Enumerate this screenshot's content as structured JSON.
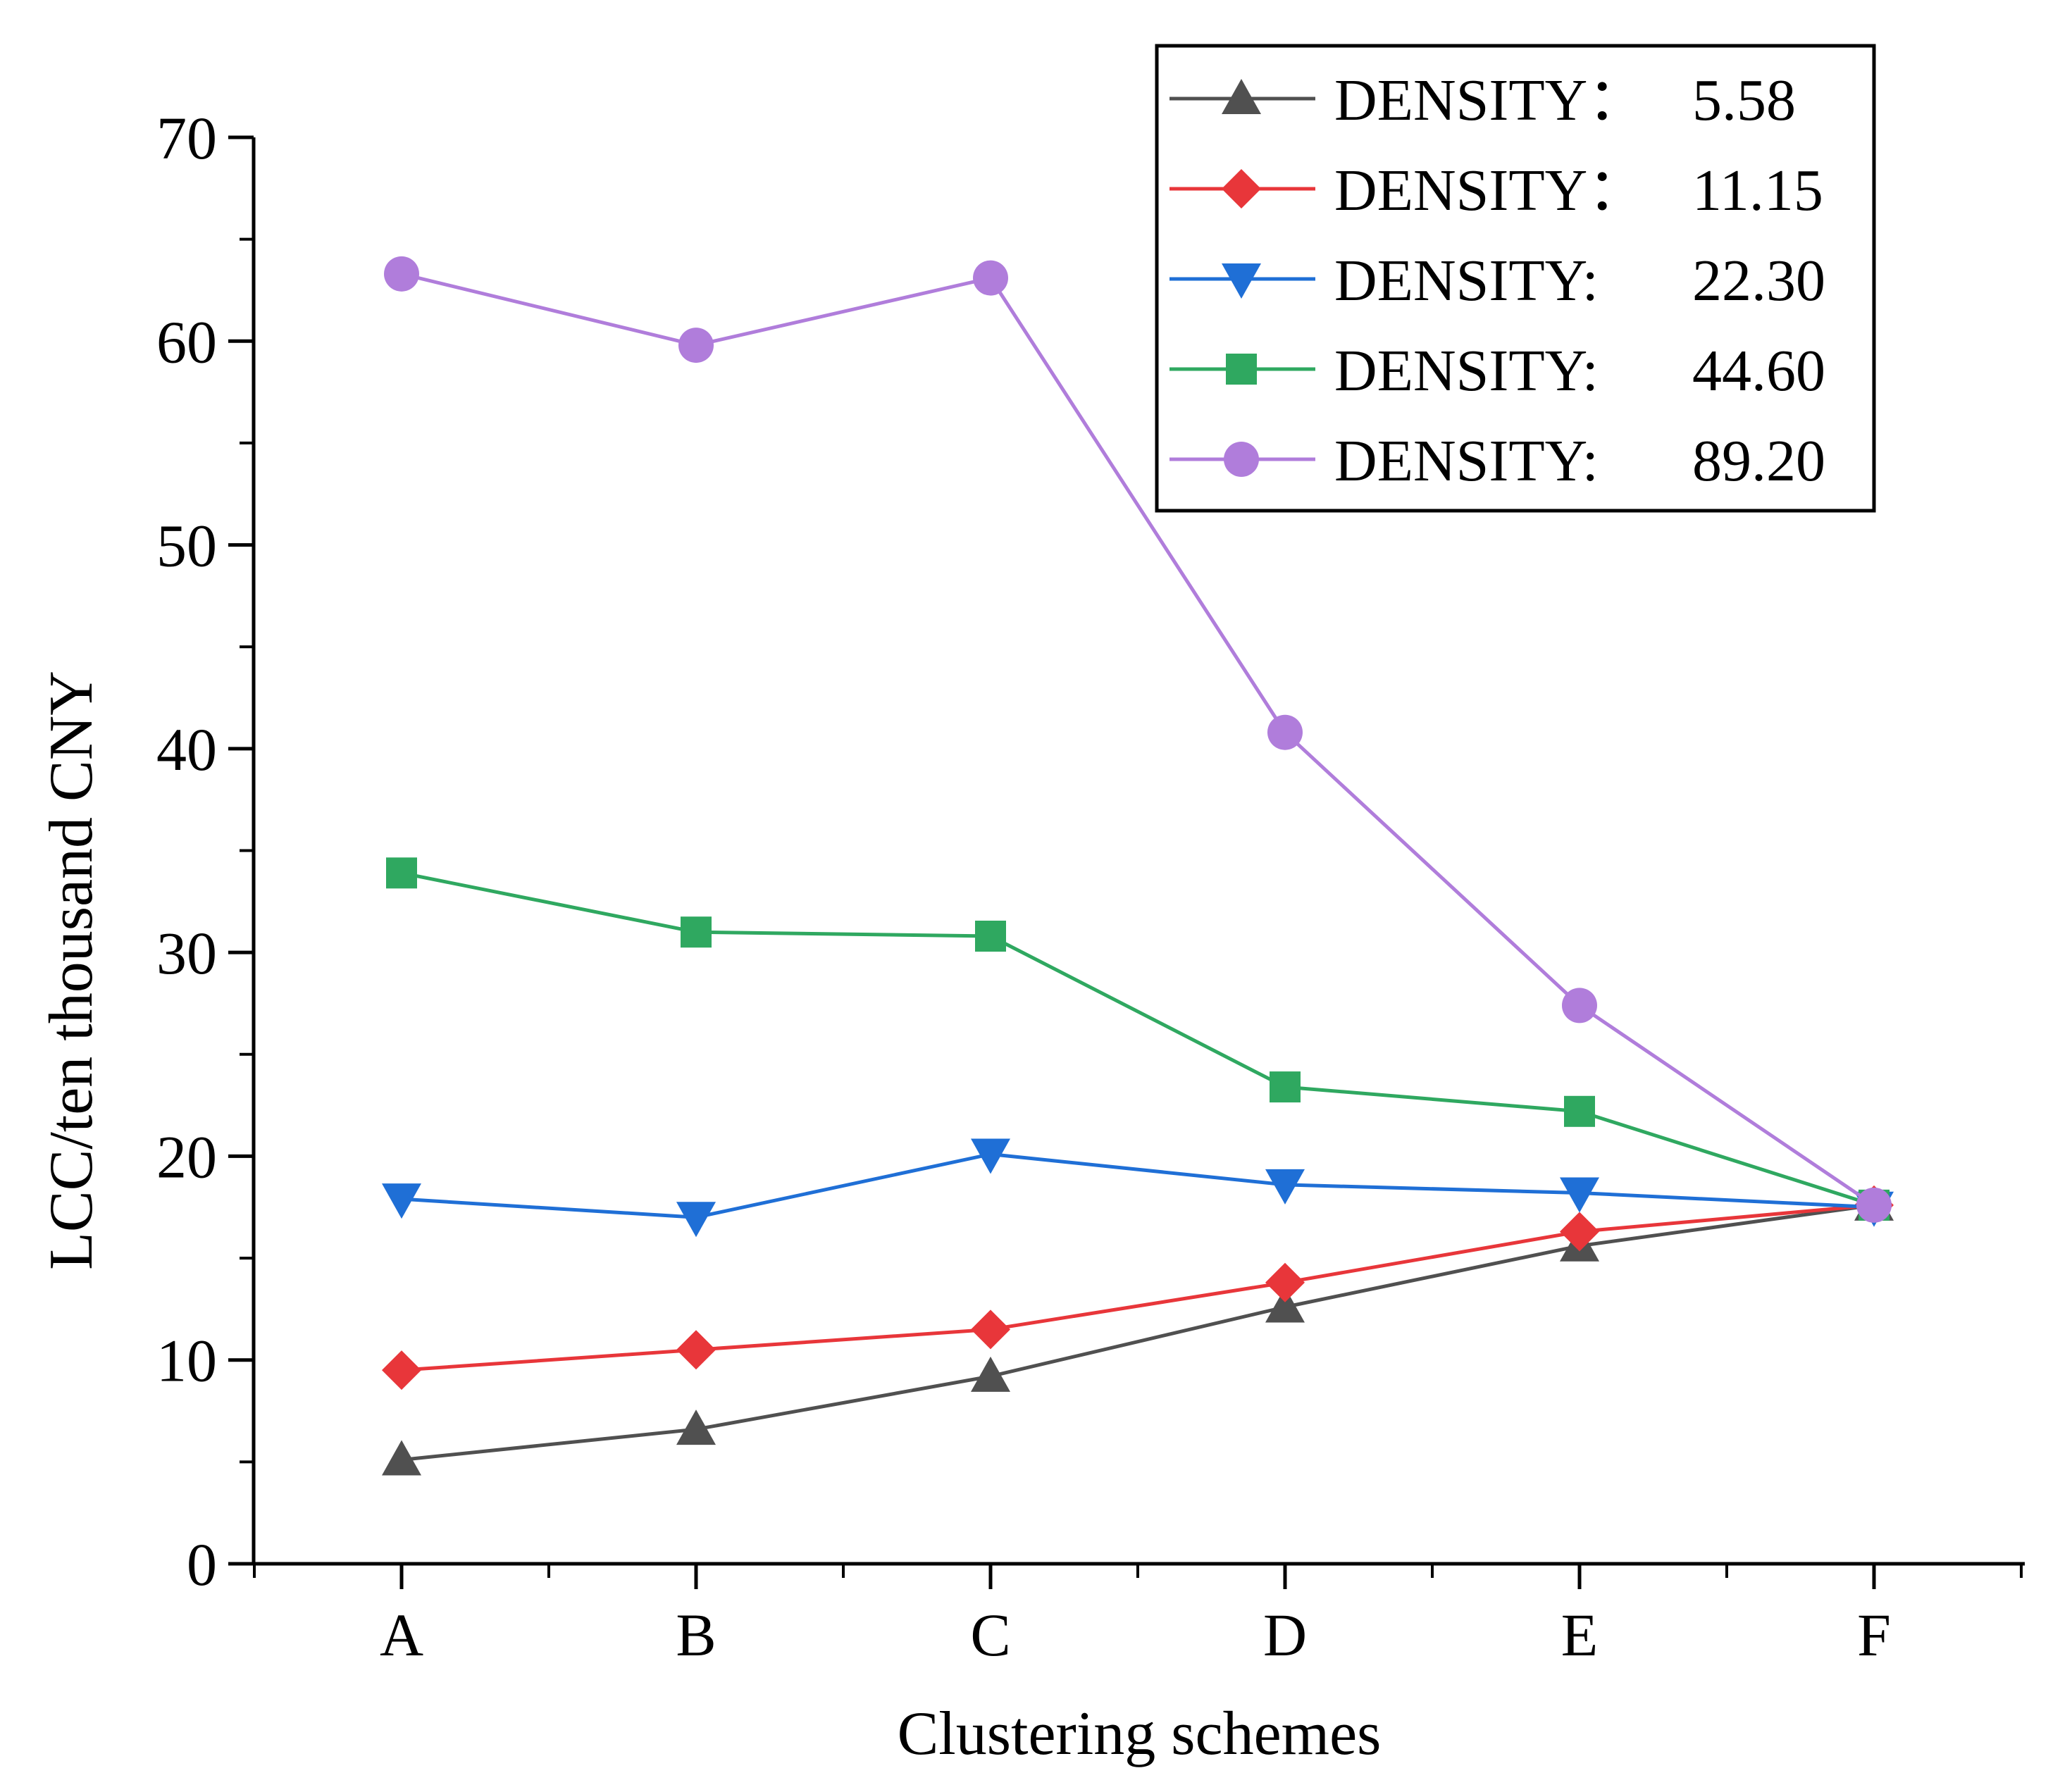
{
  "chart_data": {
    "type": "line",
    "xlabel": "Clustering schemes",
    "ylabel": "LCC/ten thousand CNY",
    "categories": [
      "A",
      "B",
      "C",
      "D",
      "E",
      "F"
    ],
    "ylim": [
      0,
      70
    ],
    "yticks": [
      "0",
      "10",
      "20",
      "30",
      "40",
      "50",
      "60",
      "70"
    ],
    "ytick_values": [
      0,
      10,
      20,
      30,
      40,
      50,
      60,
      70
    ],
    "grid": false,
    "legend_position": "top-right",
    "series": [
      {
        "label": "DENSITY：",
        "value_label": "5.58",
        "color": "#505050",
        "marker": "triangle-up",
        "values": [
          5.1,
          6.6,
          9.2,
          12.6,
          15.6,
          17.6
        ]
      },
      {
        "label": "DENSITY：",
        "value_label": "11.15",
        "color": "#e8363a",
        "marker": "diamond",
        "values": [
          9.5,
          10.5,
          11.5,
          13.8,
          16.3,
          17.6
        ]
      },
      {
        "label": "DENSITY:",
        "value_label": "22.30",
        "color": "#1f6fd6",
        "marker": "triangle-down",
        "values": [
          17.9,
          17.0,
          20.1,
          18.6,
          18.2,
          17.5
        ]
      },
      {
        "label": "DENSITY:",
        "value_label": "44.60",
        "color": "#2fa860",
        "marker": "square",
        "values": [
          33.9,
          31.0,
          30.8,
          23.4,
          22.2,
          17.6
        ]
      },
      {
        "label": "DENSITY:",
        "value_label": "89.20",
        "color": "#b07ddb",
        "marker": "circle",
        "values": [
          63.3,
          59.8,
          63.1,
          40.8,
          27.4,
          17.6
        ]
      }
    ]
  }
}
